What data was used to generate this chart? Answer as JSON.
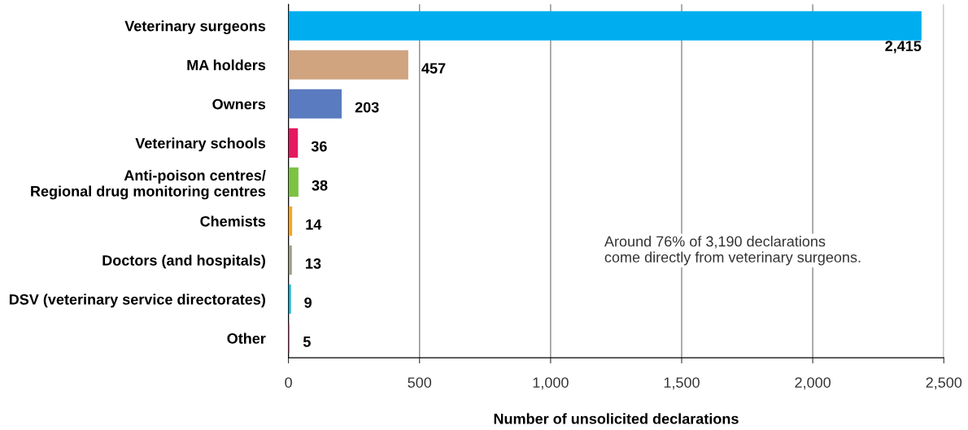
{
  "chart_data": {
    "type": "bar",
    "orientation": "horizontal",
    "categories": [
      "Veterinary surgeons",
      "MA holders",
      "Owners",
      "Veterinary schools",
      "Anti-poison centres/\nRegional drug monitoring centres",
      "Chemists",
      "Doctors (and hospitals)",
      "DSV (veterinary service directorates)",
      "Other"
    ],
    "values": [
      2415,
      457,
      203,
      36,
      38,
      14,
      13,
      9,
      5
    ],
    "colors": [
      "#00aeef",
      "#cfa47f",
      "#5a7bbf",
      "#e5195f",
      "#7dc242",
      "#f5a623",
      "#a0a08a",
      "#00b5d9",
      "#e86ea8"
    ],
    "value_labels": [
      "2,415",
      "457",
      "203",
      "36",
      "38",
      "14",
      "13",
      "9",
      "5"
    ],
    "xlabel": "Number of unsolicited declarations",
    "xlim": [
      0,
      2500
    ],
    "xticks": [
      0,
      500,
      {
        "value": 1000,
        "label": "1,000"
      },
      {
        "value": 1500,
        "label": "1,500"
      },
      {
        "value": 2000,
        "label": "2,000"
      },
      {
        "value": 2500,
        "label": "2,500"
      }
    ],
    "grid": "x",
    "annotations": [
      "Around 76% of 3,190 declarations\ncome directly from veterinary surgeons."
    ]
  }
}
